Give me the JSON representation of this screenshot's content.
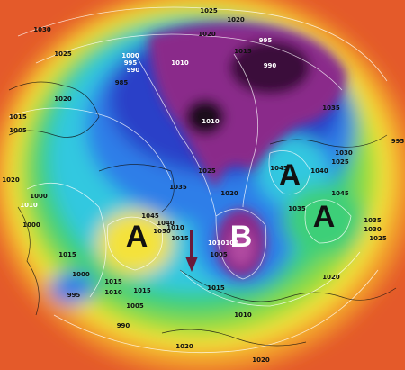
{
  "map": {
    "pressure_centers": [
      "A",
      "B",
      "A",
      "A"
    ],
    "isobar_labels": [
      "1030",
      "1025",
      "1020",
      "1015",
      "1005",
      "1000",
      "1010",
      "1000",
      "1020",
      "1015",
      "1000",
      "995",
      "1015",
      "1010",
      "1015",
      "1005",
      "990",
      "1025",
      "1020",
      "1015",
      "1020",
      "1010",
      "1000",
      "995",
      "990",
      "985",
      "1010",
      "1025",
      "1035",
      "1040",
      "1045",
      "1050",
      "1010",
      "1015",
      "1010100",
      "1005",
      "1020",
      "1045",
      "1040",
      "1030",
      "1025",
      "1035",
      "1035",
      "1045",
      "1035",
      "1030",
      "1025",
      "1020",
      "995",
      "995",
      "990",
      "1015",
      "1010",
      "1020",
      "1020"
    ]
  }
}
